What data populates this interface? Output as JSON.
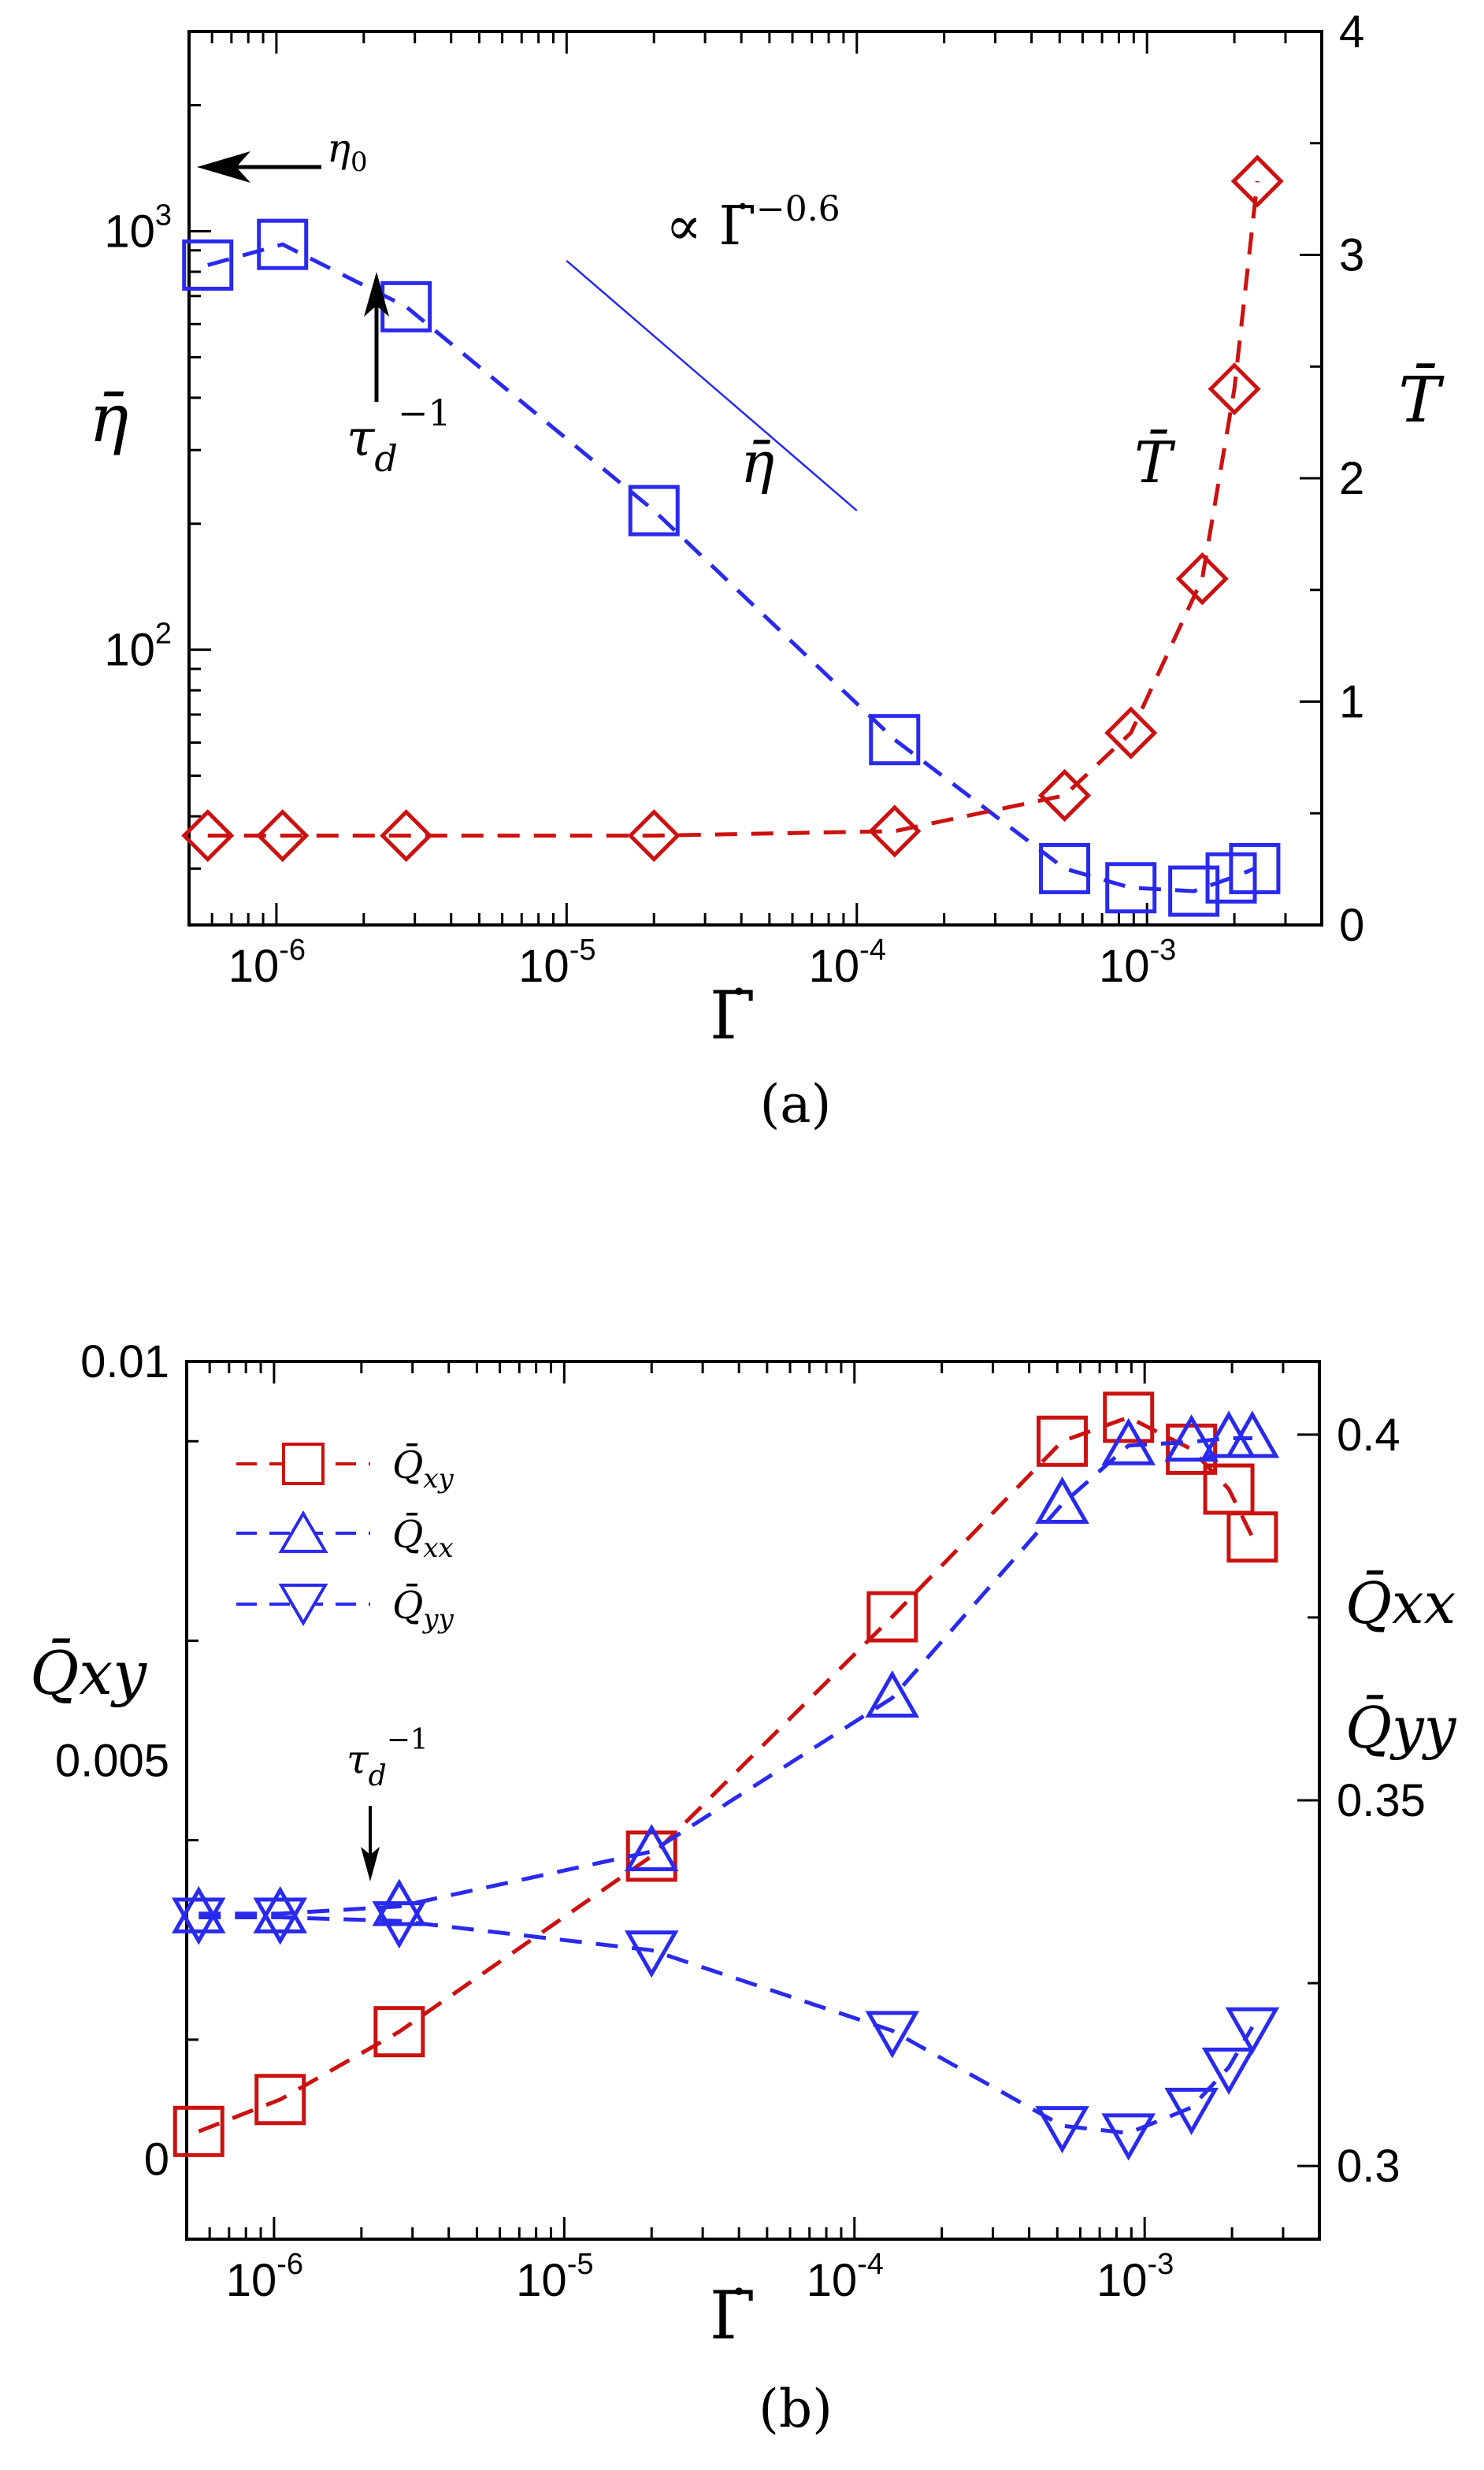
{
  "chart_data": [
    {
      "id": "a",
      "type": "line",
      "panel_label": "(a)",
      "xlabel": "Γ̇",
      "x_scale": "log",
      "xlim": [
        5e-07,
        0.004
      ],
      "x_ticks": [
        {
          "value": 1e-06,
          "base": "10",
          "exp": "-6"
        },
        {
          "value": 1e-05,
          "base": "10",
          "exp": "-5"
        },
        {
          "value": 0.0001,
          "base": "10",
          "exp": "-4"
        },
        {
          "value": 0.001,
          "base": "10",
          "exp": "-3"
        }
      ],
      "left_axis": {
        "label": "η̄",
        "scale": "log",
        "lim": [
          22,
          3000
        ],
        "ticks": [
          {
            "value": 100,
            "base": "10",
            "exp": "2"
          },
          {
            "value": 1000,
            "base": "10",
            "exp": "3"
          }
        ]
      },
      "right_axis": {
        "label": "T̄",
        "scale": "linear",
        "lim": [
          0,
          4
        ],
        "ticks": [
          {
            "value": 0,
            "label": "0"
          },
          {
            "value": 1,
            "label": "1"
          },
          {
            "value": 2,
            "label": "2"
          },
          {
            "value": 3,
            "label": "3"
          },
          {
            "value": 4,
            "label": "4"
          }
        ]
      },
      "series": [
        {
          "name": "η̄",
          "axis": "left",
          "color": "#2a2aee",
          "marker": "square",
          "x": [
            5.8e-07,
            1.05e-06,
            2.8e-06,
            2e-05,
            0.000135,
            0.00052,
            0.00088,
            0.00145,
            0.00195,
            0.00235
          ],
          "values": [
            830,
            930,
            660,
            215,
            61,
            30,
            27,
            26.5,
            28.5,
            30
          ]
        },
        {
          "name": "T̄",
          "axis": "right",
          "color": "#cc1111",
          "marker": "diamond",
          "x": [
            5.8e-07,
            1.05e-06,
            2.8e-06,
            2e-05,
            0.000135,
            0.00052,
            0.00088,
            0.00155,
            0.002,
            0.0024
          ],
          "values": [
            0.4,
            0.4,
            0.4,
            0.4,
            0.42,
            0.58,
            0.86,
            1.55,
            2.4,
            3.33
          ]
        }
      ],
      "slope_guide": {
        "label": "∝ Γ̇^−0.6",
        "color": "#2a2aee",
        "x": [
          1e-05,
          0.0001
        ],
        "values": [
          850,
          215
        ]
      },
      "annotations": [
        {
          "id": "eta0",
          "text": "η",
          "sub": "0",
          "x": 5.8e-07,
          "value": 1000
        },
        {
          "id": "taud",
          "text": "τ",
          "sub": "d",
          "sup": "−1",
          "x": 2.3e-06,
          "value": 500
        },
        {
          "id": "eta_label",
          "text": "η̄",
          "x": 3.8e-05,
          "value": 175
        },
        {
          "id": "T_label",
          "text": "T̄",
          "x": 0.0011,
          "value": 2.2
        },
        {
          "id": "slope_label",
          "text": "∝ Γ̇",
          "sup": "−0.6"
        }
      ]
    },
    {
      "id": "b",
      "type": "line",
      "panel_label": "(b)",
      "xlabel": "Γ̇",
      "x_scale": "log",
      "xlim": [
        5e-07,
        0.004
      ],
      "x_ticks": [
        {
          "value": 1e-06,
          "base": "10",
          "exp": "-6"
        },
        {
          "value": 1e-05,
          "base": "10",
          "exp": "-5"
        },
        {
          "value": 0.0001,
          "base": "10",
          "exp": "-4"
        },
        {
          "value": 0.001,
          "base": "10",
          "exp": "-3"
        }
      ],
      "left_axis": {
        "label": "Q̄xy",
        "scale": "linear",
        "lim": [
          -0.001,
          0.01
        ],
        "ticks": [
          {
            "value": 0,
            "label": "0"
          },
          {
            "value": 0.005,
            "label": "0.005"
          },
          {
            "value": 0.01,
            "label": "0.01"
          }
        ]
      },
      "right_axis": {
        "label_lines": [
          "Q̄xx",
          "Q̄yy"
        ],
        "scale": "linear",
        "lim": [
          0.29,
          0.41
        ],
        "ticks": [
          {
            "value": 0.3,
            "label": "0.3"
          },
          {
            "value": 0.35,
            "label": "0.35"
          },
          {
            "value": 0.4,
            "label": "0.4"
          }
        ]
      },
      "series": [
        {
          "name": "Q̄",
          "sub": "xy",
          "axis": "left",
          "color": "#cc1111",
          "marker": "square",
          "x": [
            5.5e-07,
            1.05e-06,
            2.7e-06,
            2e-05,
            0.000135,
            0.00052,
            0.00088,
            0.00145,
            0.00195,
            0.00235
          ],
          "values": [
            0.00035,
            0.00075,
            0.0016,
            0.0038,
            0.0068,
            0.009,
            0.0093,
            0.0089,
            0.0084,
            0.0078
          ]
        },
        {
          "name": "Q̄",
          "sub": "xx",
          "axis": "right",
          "color": "#2a2aee",
          "marker": "triangle-up",
          "x": [
            5.5e-07,
            1.05e-06,
            2.7e-06,
            2e-05,
            0.000135,
            0.00052,
            0.00088,
            0.00145,
            0.00195,
            0.00235
          ],
          "values": [
            0.3345,
            0.3345,
            0.3355,
            0.343,
            0.364,
            0.3905,
            0.3985,
            0.399,
            0.3995,
            0.3995
          ]
        },
        {
          "name": "Q̄",
          "sub": "yy",
          "axis": "right",
          "color": "#2a2aee",
          "marker": "triangle-down",
          "x": [
            5.5e-07,
            1.05e-06,
            2.7e-06,
            2e-05,
            0.000135,
            0.00052,
            0.00088,
            0.00145,
            0.00195,
            0.00235
          ],
          "values": [
            0.334,
            0.334,
            0.3335,
            0.3295,
            0.3185,
            0.3055,
            0.3045,
            0.308,
            0.3135,
            0.319
          ]
        }
      ],
      "legend_position": "top-left",
      "annotations": [
        {
          "id": "taud",
          "text": "τ",
          "sub": "d",
          "sup": "−1",
          "x": 2.3e-06,
          "value": 0.0041
        }
      ]
    }
  ]
}
